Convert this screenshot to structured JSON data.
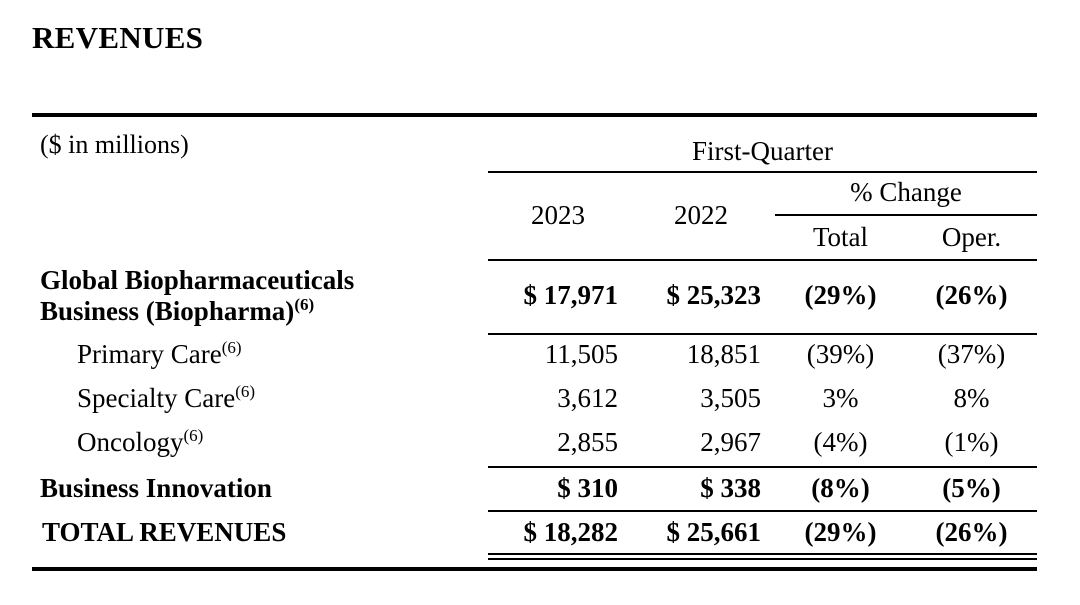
{
  "title": "REVENUES",
  "units_label": "($ in millions)",
  "header": {
    "period": "First-Quarter",
    "col_2023": "2023",
    "col_2022": "2022",
    "pct_change": "% Change",
    "total": "Total",
    "oper": "Oper."
  },
  "rows": [
    {
      "label_line1": "Global Biopharmaceuticals",
      "label_line2": "Business (Biopharma)",
      "footnote": "(6)",
      "v2023": "$ 17,971",
      "v2022": "$ 25,323",
      "total": "(29%)",
      "oper": "(26%)"
    },
    {
      "label": "Primary Care",
      "footnote": "(6)",
      "v2023": "11,505",
      "v2022": "18,851",
      "total": "(39%)",
      "oper": "(37%)"
    },
    {
      "label": "Specialty Care",
      "footnote": "(6)",
      "v2023": "3,612",
      "v2022": "3,505",
      "total": "3%",
      "oper": "8%"
    },
    {
      "label": "Oncology",
      "footnote": "(6)",
      "v2023": "2,855",
      "v2022": "2,967",
      "total": "(4%)",
      "oper": "(1%)"
    },
    {
      "label": "Business Innovation",
      "v2023": "$ 310",
      "v2022": "$ 338",
      "total": "(8%)",
      "oper": "(5%)"
    },
    {
      "label": "TOTAL REVENUES",
      "v2023": "$ 18,282",
      "v2022": "$ 25,661",
      "total": "(29%)",
      "oper": "(26%)"
    }
  ]
}
